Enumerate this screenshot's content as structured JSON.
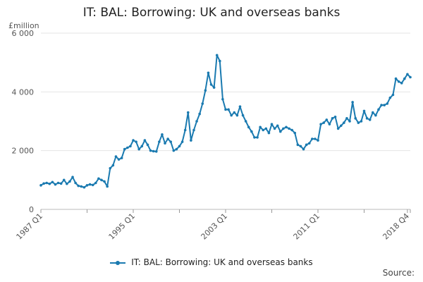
{
  "chart_data": {
    "type": "line",
    "title": "IT: BAL: Borrowing: UK and overseas banks",
    "ylabel": "£million",
    "xlabel": "",
    "ylim": [
      0,
      6000
    ],
    "yticks": [
      0,
      2000,
      4000,
      6000
    ],
    "ytick_labels": [
      "0",
      "2 000",
      "4 000",
      "6 000"
    ],
    "xtick_labels": [
      "1987 Q1",
      "1995 Q1",
      "2003 Q1",
      "2011 Q1",
      "2018 Q4"
    ],
    "grid": true,
    "legend": "bottom-center",
    "color": "#1a7ab0",
    "x_start": "1987 Q1",
    "x_end": "2018 Q4",
    "series": [
      {
        "name": "IT: BAL: Borrowing: UK and overseas banks",
        "values": [
          820,
          880,
          900,
          870,
          930,
          850,
          900,
          880,
          1000,
          870,
          950,
          1100,
          900,
          800,
          780,
          750,
          820,
          850,
          830,
          900,
          1050,
          1000,
          950,
          780,
          1400,
          1500,
          1800,
          1700,
          1750,
          2050,
          2100,
          2150,
          2350,
          2300,
          2050,
          2150,
          2350,
          2200,
          2000,
          1980,
          1970,
          2300,
          2550,
          2250,
          2400,
          2300,
          2000,
          2050,
          2150,
          2300,
          2700,
          3300,
          2350,
          2700,
          3000,
          3250,
          3600,
          4050,
          4650,
          4250,
          4150,
          5250,
          5050,
          3750,
          3400,
          3400,
          3200,
          3300,
          3200,
          3500,
          3200,
          3000,
          2800,
          2650,
          2450,
          2450,
          2800,
          2700,
          2750,
          2600,
          2900,
          2750,
          2850,
          2650,
          2750,
          2800,
          2750,
          2700,
          2600,
          2200,
          2150,
          2050,
          2200,
          2250,
          2400,
          2400,
          2350,
          2900,
          2950,
          3050,
          2900,
          3100,
          3150,
          2750,
          2850,
          2950,
          3100,
          3000,
          3650,
          3100,
          2950,
          3000,
          3350,
          3100,
          3050,
          3300,
          3200,
          3400,
          3550,
          3550,
          3600,
          3800,
          3900,
          4450,
          4350,
          4300,
          4450,
          4600,
          4500
        ]
      }
    ]
  },
  "legend": {
    "label": "IT: BAL: Borrowing: UK and overseas banks"
  },
  "source": {
    "label": "Source:"
  }
}
